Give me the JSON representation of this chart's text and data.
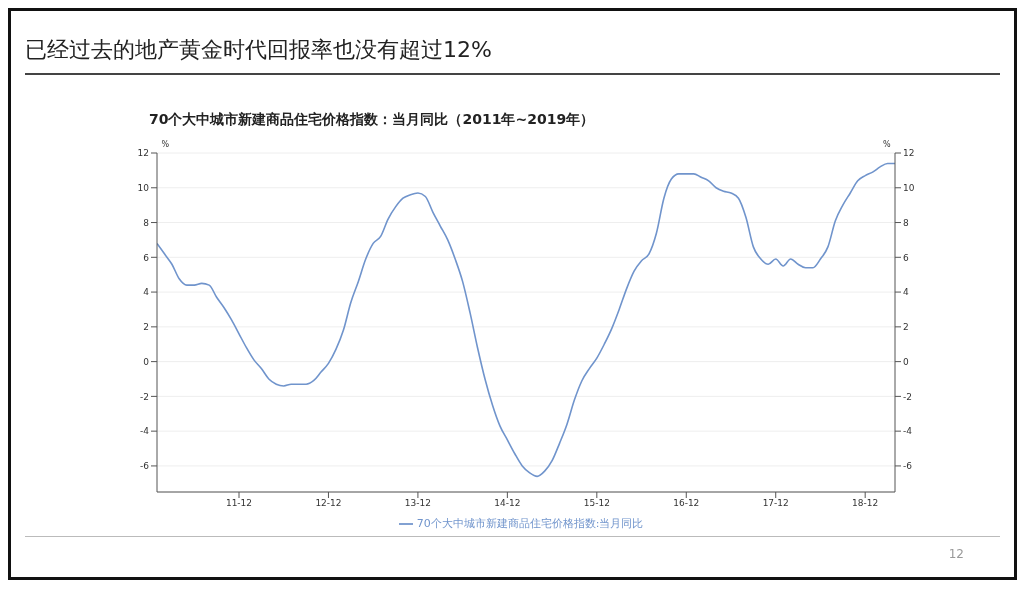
{
  "chart_data": {
    "type": "line",
    "title": "已经过去的地产黄金时代回报率也没有超过12%",
    "subtitle": "70个大中城市新建商品住宅价格指数：当月同比（2011年~2019年）",
    "ylabel": "%",
    "y2label": "%",
    "annotations": [
      "12"
    ],
    "x": [
      "2011-01",
      "2011-02",
      "2011-03",
      "2011-04",
      "2011-05",
      "2011-06",
      "2011-07",
      "2011-08",
      "2011-09",
      "2011-10",
      "2011-11",
      "2011-12",
      "2012-01",
      "2012-02",
      "2012-03",
      "2012-04",
      "2012-05",
      "2012-06",
      "2012-07",
      "2012-08",
      "2012-09",
      "2012-10",
      "2012-11",
      "2012-12",
      "2013-01",
      "2013-02",
      "2013-03",
      "2013-04",
      "2013-05",
      "2013-06",
      "2013-07",
      "2013-08",
      "2013-09",
      "2013-10",
      "2013-11",
      "2013-12",
      "2014-01",
      "2014-02",
      "2014-03",
      "2014-04",
      "2014-05",
      "2014-06",
      "2014-07",
      "2014-08",
      "2014-09",
      "2014-10",
      "2014-11",
      "2014-12",
      "2015-01",
      "2015-02",
      "2015-03",
      "2015-04",
      "2015-05",
      "2015-06",
      "2015-07",
      "2015-08",
      "2015-09",
      "2015-10",
      "2015-11",
      "2015-12",
      "2016-01",
      "2016-02",
      "2016-03",
      "2016-04",
      "2016-05",
      "2016-06",
      "2016-07",
      "2016-08",
      "2016-09",
      "2016-10",
      "2016-11",
      "2016-12",
      "2017-01",
      "2017-02",
      "2017-03",
      "2017-04",
      "2017-05",
      "2017-06",
      "2017-07",
      "2017-08",
      "2017-09",
      "2017-10",
      "2017-11",
      "2017-12",
      "2018-01",
      "2018-02",
      "2018-03",
      "2018-04",
      "2018-05",
      "2018-06",
      "2018-07",
      "2018-08",
      "2018-09",
      "2018-10",
      "2018-11",
      "2018-12",
      "2019-01",
      "2019-02",
      "2019-03",
      "2019-04"
    ],
    "series": [
      {
        "name": "70个大中城市新建商品住宅价格指数:当月同比",
        "color": "#7094cc",
        "values": [
          6.8,
          6.2,
          5.6,
          4.75,
          4.4,
          4.4,
          4.5,
          4.4,
          3.7,
          3.1,
          2.4,
          1.6,
          0.8,
          0.1,
          -0.4,
          -1.0,
          -1.3,
          -1.4,
          -1.3,
          -1.3,
          -1.3,
          -1.1,
          -0.6,
          -0.1,
          0.7,
          1.8,
          3.4,
          4.6,
          5.9,
          6.8,
          7.2,
          8.2,
          8.9,
          9.4,
          9.6,
          9.7,
          9.5,
          8.6,
          7.8,
          7.0,
          5.9,
          4.6,
          2.8,
          0.8,
          -1.0,
          -2.5,
          -3.7,
          -4.5,
          -5.3,
          -6.0,
          -6.4,
          -6.6,
          -6.3,
          -5.7,
          -4.7,
          -3.6,
          -2.2,
          -1.1,
          -0.4,
          0.2,
          1.0,
          1.9,
          3.0,
          4.2,
          5.2,
          5.8,
          6.2,
          7.4,
          9.4,
          10.5,
          10.8,
          10.8,
          10.8,
          10.6,
          10.4,
          10.0,
          9.8,
          9.7,
          9.4,
          8.3,
          6.6,
          5.9,
          5.6,
          5.9,
          5.5,
          5.9,
          5.6,
          5.4,
          5.4,
          5.9,
          6.6,
          8.1,
          9.0,
          9.7,
          10.4,
          10.7,
          10.9,
          11.2,
          11.4,
          11.4
        ]
      }
    ],
    "xlim": [
      "2011-01",
      "2019-04"
    ],
    "xticks": [
      {
        "value": "2011-12",
        "label": "11-12"
      },
      {
        "value": "2012-12",
        "label": "12-12"
      },
      {
        "value": "2013-12",
        "label": "13-12"
      },
      {
        "value": "2014-12",
        "label": "14-12"
      },
      {
        "value": "2015-12",
        "label": "15-12"
      },
      {
        "value": "2016-12",
        "label": "16-12"
      },
      {
        "value": "2017-12",
        "label": "17-12"
      },
      {
        "value": "2018-12",
        "label": "18-12"
      }
    ],
    "ylim": [
      -7.5,
      12
    ],
    "yticks": [
      -6,
      -4,
      -2,
      0,
      2,
      4,
      6,
      8,
      10,
      12
    ],
    "y2lim": [
      -7.5,
      12
    ],
    "y2ticks": [
      -6,
      -4,
      -2,
      0,
      2,
      4,
      6,
      8,
      10,
      12
    ],
    "grid": "y",
    "legend": "bottom",
    "marker": "none",
    "line_style": "solid"
  }
}
